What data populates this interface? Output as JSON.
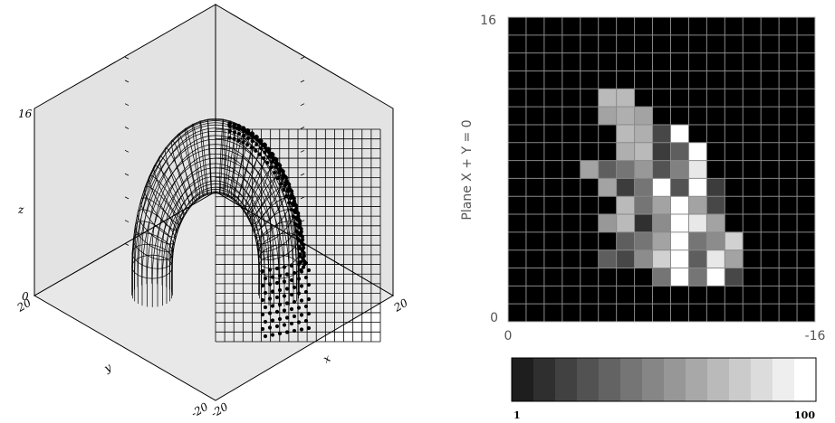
{
  "chart_data": [
    {
      "type": "surface-3d",
      "xlabel": "x",
      "ylabel": "y",
      "zlabel": "z",
      "x_ticks": [
        "-20",
        "20"
      ],
      "y_ticks": [
        "-20",
        "20"
      ],
      "z_ticks": [
        "0",
        "16"
      ],
      "xlim": [
        -20,
        20
      ],
      "ylim": [
        -20,
        20
      ],
      "zlim": [
        0,
        16
      ],
      "grid": true
    },
    {
      "type": "heatmap",
      "ylabel": "Plane X + Y = 0",
      "x_ticks": [
        "0",
        "-16"
      ],
      "y_ticks": [
        "0",
        "16"
      ],
      "xlim": [
        0,
        -16
      ],
      "ylim": [
        0,
        16
      ],
      "rows": [
        [
          0,
          0,
          0,
          0,
          0,
          0,
          0,
          0,
          0,
          0,
          0,
          0,
          0,
          0,
          0,
          0,
          0
        ],
        [
          0,
          0,
          0,
          0,
          0,
          0,
          0,
          0,
          0,
          0,
          0,
          0,
          0,
          0,
          0,
          0,
          0
        ],
        [
          0,
          0,
          0,
          0,
          0,
          0,
          0,
          0,
          0,
          0,
          0,
          0,
          0,
          0,
          0,
          0,
          0
        ],
        [
          0,
          0,
          0,
          0,
          0,
          0,
          0,
          0,
          0,
          0,
          0,
          0,
          0,
          0,
          0,
          0,
          0
        ],
        [
          0,
          0,
          0,
          0,
          0,
          70,
          70,
          0,
          0,
          0,
          0,
          0,
          0,
          0,
          0,
          0,
          0
        ],
        [
          0,
          0,
          0,
          0,
          0,
          60,
          65,
          60,
          0,
          0,
          0,
          0,
          0,
          0,
          0,
          0,
          0
        ],
        [
          0,
          0,
          0,
          0,
          0,
          0,
          70,
          65,
          20,
          100,
          0,
          0,
          0,
          0,
          0,
          0,
          0
        ],
        [
          0,
          0,
          0,
          0,
          0,
          0,
          65,
          70,
          15,
          30,
          100,
          0,
          0,
          0,
          0,
          0,
          0
        ],
        [
          0,
          0,
          0,
          0,
          60,
          30,
          40,
          55,
          25,
          45,
          90,
          0,
          0,
          0,
          0,
          0,
          0
        ],
        [
          0,
          0,
          0,
          0,
          0,
          60,
          15,
          40,
          100,
          25,
          100,
          15,
          0,
          0,
          0,
          0,
          0
        ],
        [
          0,
          0,
          0,
          0,
          0,
          0,
          70,
          40,
          60,
          100,
          60,
          20,
          0,
          0,
          0,
          0,
          0
        ],
        [
          0,
          0,
          0,
          0,
          0,
          55,
          70,
          10,
          50,
          100,
          90,
          60,
          0,
          0,
          0,
          0,
          0
        ],
        [
          0,
          0,
          0,
          0,
          0,
          0,
          30,
          40,
          60,
          100,
          40,
          50,
          80,
          0,
          0,
          0,
          0
        ],
        [
          0,
          0,
          0,
          0,
          0,
          30,
          20,
          50,
          80,
          100,
          30,
          90,
          60,
          0,
          0,
          0,
          0
        ],
        [
          0,
          0,
          0,
          0,
          0,
          0,
          0,
          0,
          40,
          100,
          40,
          100,
          20,
          0,
          0,
          0,
          0
        ],
        [
          0,
          0,
          0,
          0,
          0,
          0,
          0,
          0,
          0,
          0,
          0,
          0,
          0,
          0,
          0,
          0,
          0
        ],
        [
          0,
          0,
          0,
          0,
          0,
          0,
          0,
          0,
          0,
          0,
          0,
          0,
          0,
          0,
          0,
          0,
          0
        ]
      ]
    }
  ],
  "colorbar": {
    "min_label": "1",
    "max_label": "100",
    "levels": 14
  }
}
